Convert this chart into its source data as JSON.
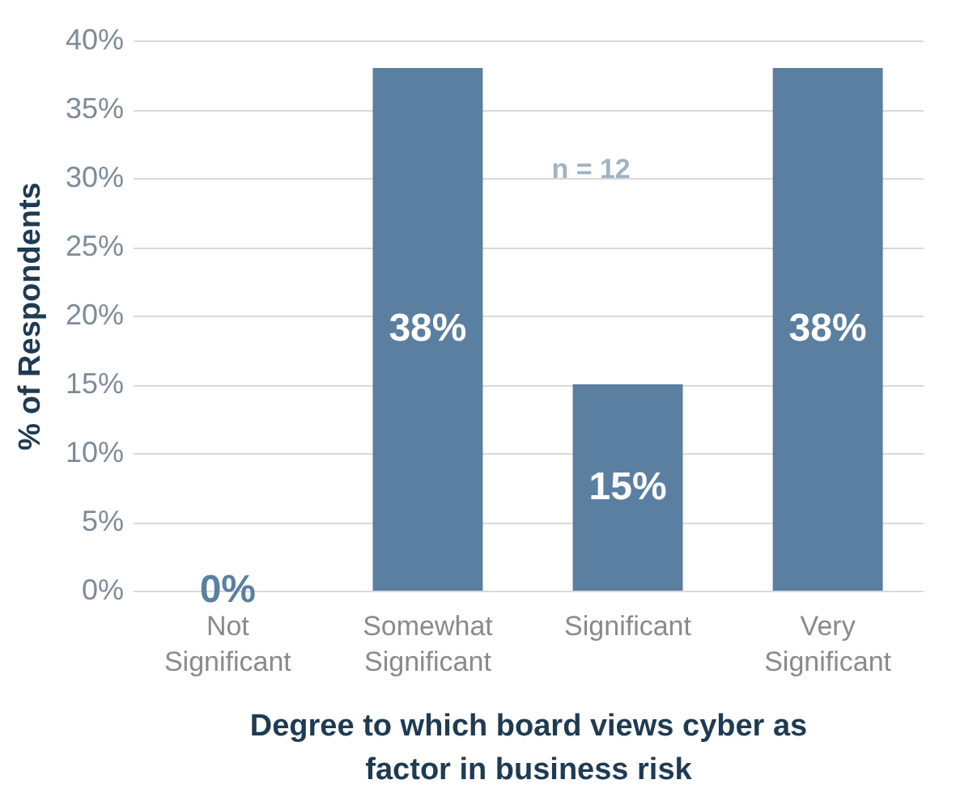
{
  "chart_data": {
    "type": "bar",
    "xlabel": "Degree to which board views cyber as factor in business risk",
    "ylabel": "% of Respondents",
    "categories": [
      "Not Significant",
      "Somewhat Significant",
      "Significant",
      "Very Significant"
    ],
    "values": [
      0,
      38,
      15,
      38
    ],
    "color": "#5b7fa0",
    "value_labels": [
      "0%",
      "38%",
      "15%",
      "38%"
    ],
    "ylim": [
      0,
      40
    ],
    "yticks": [
      {
        "value": 0,
        "label": "0%"
      },
      {
        "value": 5,
        "label": "5%"
      },
      {
        "value": 10,
        "label": "10%"
      },
      {
        "value": 15,
        "label": "15%"
      },
      {
        "value": 20,
        "label": "20%"
      },
      {
        "value": 25,
        "label": "25%"
      },
      {
        "value": 30,
        "label": "30%"
      },
      {
        "value": 35,
        "label": "35%"
      },
      {
        "value": 40,
        "label": "40%"
      }
    ],
    "grid": "y",
    "annotations": [
      "n = 12"
    ]
  }
}
